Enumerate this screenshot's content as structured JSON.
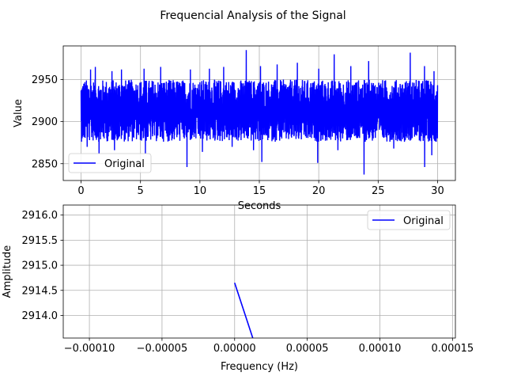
{
  "figure_title": "Frequencial Analysis of the Signal",
  "chart_data": [
    {
      "type": "line",
      "title": "",
      "xlabel": "Seconds",
      "ylabel": "Value",
      "xlim": [
        -1.5,
        31.5
      ],
      "ylim": [
        2830,
        2990
      ],
      "xticks": [
        0,
        5,
        10,
        15,
        20,
        25,
        30
      ],
      "xtick_labels": [
        "0",
        "5",
        "10",
        "15",
        "20",
        "25",
        "30"
      ],
      "yticks": [
        2850,
        2900,
        2950
      ],
      "ytick_labels": [
        "2850",
        "2900",
        "2950"
      ],
      "grid": true,
      "legend": {
        "position": "lower-left",
        "entries": [
          "Original"
        ]
      },
      "series": [
        {
          "name": "Original",
          "color": "#0000ff",
          "x_range": [
            0,
            30
          ],
          "center": 2912,
          "band_low": 2876,
          "band_high": 2950,
          "spikes_high": [
            {
              "x": 0.8,
              "y": 2962
            },
            {
              "x": 1.2,
              "y": 2965
            },
            {
              "x": 2.6,
              "y": 2960
            },
            {
              "x": 3.4,
              "y": 2962
            },
            {
              "x": 5.3,
              "y": 2963
            },
            {
              "x": 6.7,
              "y": 2965
            },
            {
              "x": 9.2,
              "y": 2962
            },
            {
              "x": 10.8,
              "y": 2963
            },
            {
              "x": 12.0,
              "y": 2965
            },
            {
              "x": 13.9,
              "y": 2985
            },
            {
              "x": 15.1,
              "y": 2966
            },
            {
              "x": 16.5,
              "y": 2968
            },
            {
              "x": 18.2,
              "y": 2970
            },
            {
              "x": 20.0,
              "y": 2963
            },
            {
              "x": 21.3,
              "y": 2980
            },
            {
              "x": 22.7,
              "y": 2966
            },
            {
              "x": 24.2,
              "y": 2972
            },
            {
              "x": 27.7,
              "y": 2982
            },
            {
              "x": 28.9,
              "y": 2966
            },
            {
              "x": 29.7,
              "y": 2960
            }
          ],
          "spikes_low": [
            {
              "x": 0.5,
              "y": 2870
            },
            {
              "x": 1.5,
              "y": 2862
            },
            {
              "x": 2.8,
              "y": 2866
            },
            {
              "x": 5.4,
              "y": 2862
            },
            {
              "x": 8.9,
              "y": 2846
            },
            {
              "x": 10.2,
              "y": 2864
            },
            {
              "x": 12.7,
              "y": 2870
            },
            {
              "x": 14.5,
              "y": 2866
            },
            {
              "x": 15.2,
              "y": 2852
            },
            {
              "x": 19.9,
              "y": 2851
            },
            {
              "x": 21.6,
              "y": 2866
            },
            {
              "x": 23.8,
              "y": 2837
            },
            {
              "x": 26.3,
              "y": 2868
            },
            {
              "x": 28.9,
              "y": 2846
            },
            {
              "x": 29.5,
              "y": 2860
            }
          ]
        }
      ]
    },
    {
      "type": "line",
      "title": "",
      "xlabel": "Frequency (Hz)",
      "ylabel": "Amplitude",
      "xlim": [
        -0.000118,
        0.000152
      ],
      "ylim": [
        2913.55,
        2916.2
      ],
      "xticks": [
        -0.0001,
        -5e-05,
        0,
        5e-05,
        0.0001,
        0.00015
      ],
      "xtick_labels": [
        "−0.00010",
        "−0.00005",
        "0.00000",
        "0.00005",
        "0.00010",
        "0.00015"
      ],
      "yticks": [
        2914.0,
        2914.5,
        2915.0,
        2915.5,
        2916.0
      ],
      "ytick_labels": [
        "2914.0",
        "2914.5",
        "2915.0",
        "2915.5",
        "2916.0"
      ],
      "grid": true,
      "legend": {
        "position": "upper-right",
        "entries": [
          "Original"
        ]
      },
      "series": [
        {
          "name": "Original",
          "color": "#0000ff",
          "x": [
            0,
            1.25e-05
          ],
          "y": [
            2914.65,
            2913.55
          ]
        }
      ]
    }
  ]
}
